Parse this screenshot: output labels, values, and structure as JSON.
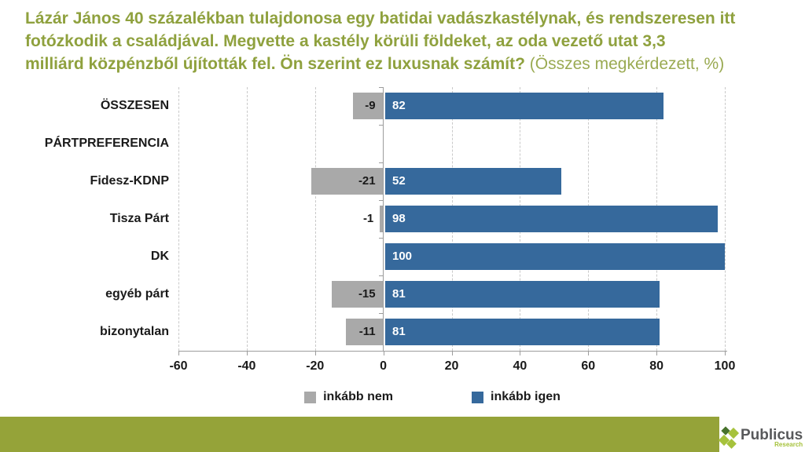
{
  "slide": {
    "title_lines": [
      "Lázár János 40 százalékban tulajdonosa egy batidai vadászkastélynak, és rendszeresen itt",
      "fotózkodik a családjával. Megvette a kastély körüli földeket, az oda vezető utat 3,3",
      "milliárd közpénzből újították fel. Ön szerint ez luxusnak számít?"
    ],
    "title_suffix": " (Összes megkérdezett, %)",
    "title_color": "#8FA13E"
  },
  "chart_data": {
    "type": "bar",
    "orientation": "horizontal-diverging",
    "categories": [
      "ÖSSZESEN",
      "PÁRTPREFERENCIA",
      "Fidesz-KDNP",
      "Tisza Párt",
      "DK",
      "egyéb párt",
      "bizonytalan"
    ],
    "series": [
      {
        "name": "inkább nem",
        "color": "#A9A9A9",
        "values": [
          -9,
          null,
          -21,
          -1,
          null,
          -15,
          -11
        ]
      },
      {
        "name": "inkább igen",
        "color": "#36699C",
        "values": [
          82,
          null,
          52,
          98,
          100,
          81,
          81
        ]
      }
    ],
    "xlim": [
      -60,
      100
    ],
    "x_ticks": [
      -60,
      -40,
      -20,
      0,
      20,
      40,
      60,
      80,
      100
    ],
    "grid": "vertical-dashed",
    "legend_position": "bottom",
    "ylabel": "",
    "xlabel": ""
  },
  "footer": {
    "bar_color": "#95A339",
    "brand_name": "Publicus",
    "brand_sub": "Research",
    "brand_sub_color": "#A6C23C",
    "logo_dark": "#47722C",
    "logo_light": "#A6C23C"
  }
}
